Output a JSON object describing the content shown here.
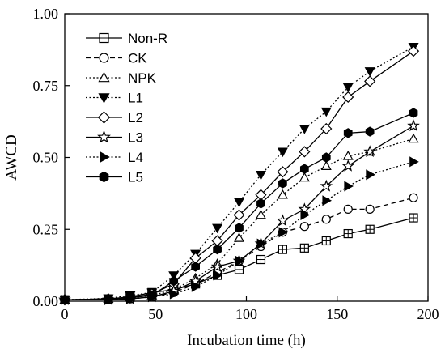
{
  "chart_data": {
    "type": "line",
    "xlabel": "Incubation time  (h)",
    "ylabel": "AWCD",
    "xlim": [
      0,
      200
    ],
    "ylim": [
      0,
      1.0
    ],
    "xticks": [
      0,
      50,
      100,
      150,
      200
    ],
    "xtick_labels": [
      "0",
      "50",
      "100",
      "150",
      "200"
    ],
    "yticks": [
      0,
      0.25,
      0.5,
      0.75,
      1.0
    ],
    "ytick_labels": [
      "0.00",
      "0.25",
      "0.50",
      "0.75",
      "1.00"
    ],
    "grid": false,
    "legend_position": "top-left",
    "x": [
      0,
      24,
      36,
      48,
      60,
      72,
      84,
      96,
      108,
      120,
      132,
      144,
      156,
      168,
      192
    ],
    "series": [
      {
        "name": "Non-R",
        "line": "solid",
        "marker": "square-plus",
        "filled": false,
        "values": [
          0.005,
          0.008,
          0.015,
          0.03,
          0.04,
          0.06,
          0.09,
          0.11,
          0.145,
          0.18,
          0.185,
          0.21,
          0.235,
          0.25,
          0.29
        ]
      },
      {
        "name": "CK",
        "line": "dashed",
        "marker": "circle",
        "filled": false,
        "values": [
          0.005,
          0.005,
          0.008,
          0.015,
          0.03,
          0.06,
          0.1,
          0.14,
          0.19,
          0.24,
          0.26,
          0.285,
          0.32,
          0.32,
          0.36
        ]
      },
      {
        "name": "NPK",
        "line": "dotted",
        "marker": "triangle-up",
        "filled": false,
        "values": [
          0.005,
          0.008,
          0.012,
          0.02,
          0.04,
          0.08,
          0.13,
          0.22,
          0.3,
          0.37,
          0.43,
          0.47,
          0.505,
          0.52,
          0.565
        ]
      },
      {
        "name": "L1",
        "line": "dotted",
        "marker": "triangle-down",
        "filled": true,
        "values": [
          0.005,
          0.01,
          0.02,
          0.03,
          0.09,
          0.165,
          0.255,
          0.345,
          0.44,
          0.52,
          0.6,
          0.66,
          0.745,
          0.8,
          0.885
        ]
      },
      {
        "name": "L2",
        "line": "solid",
        "marker": "diamond",
        "filled": false,
        "values": [
          0.005,
          0.008,
          0.012,
          0.025,
          0.06,
          0.15,
          0.21,
          0.3,
          0.37,
          0.45,
          0.52,
          0.6,
          0.71,
          0.765,
          0.87
        ]
      },
      {
        "name": "L3",
        "line": "solid",
        "marker": "star",
        "filled": false,
        "values": [
          0.005,
          0.005,
          0.008,
          0.015,
          0.035,
          0.07,
          0.12,
          0.14,
          0.2,
          0.28,
          0.32,
          0.4,
          0.47,
          0.52,
          0.61
        ]
      },
      {
        "name": "L4",
        "line": "dotted",
        "marker": "triangle-right",
        "filled": true,
        "values": [
          0.005,
          0.005,
          0.008,
          0.015,
          0.025,
          0.05,
          0.09,
          0.14,
          0.2,
          0.24,
          0.3,
          0.35,
          0.4,
          0.44,
          0.485
        ]
      },
      {
        "name": "L5",
        "line": "solid",
        "marker": "hexagon",
        "filled": true,
        "values": [
          0.005,
          0.008,
          0.012,
          0.02,
          0.07,
          0.12,
          0.18,
          0.255,
          0.34,
          0.41,
          0.46,
          0.5,
          0.585,
          0.59,
          0.655
        ]
      }
    ]
  }
}
